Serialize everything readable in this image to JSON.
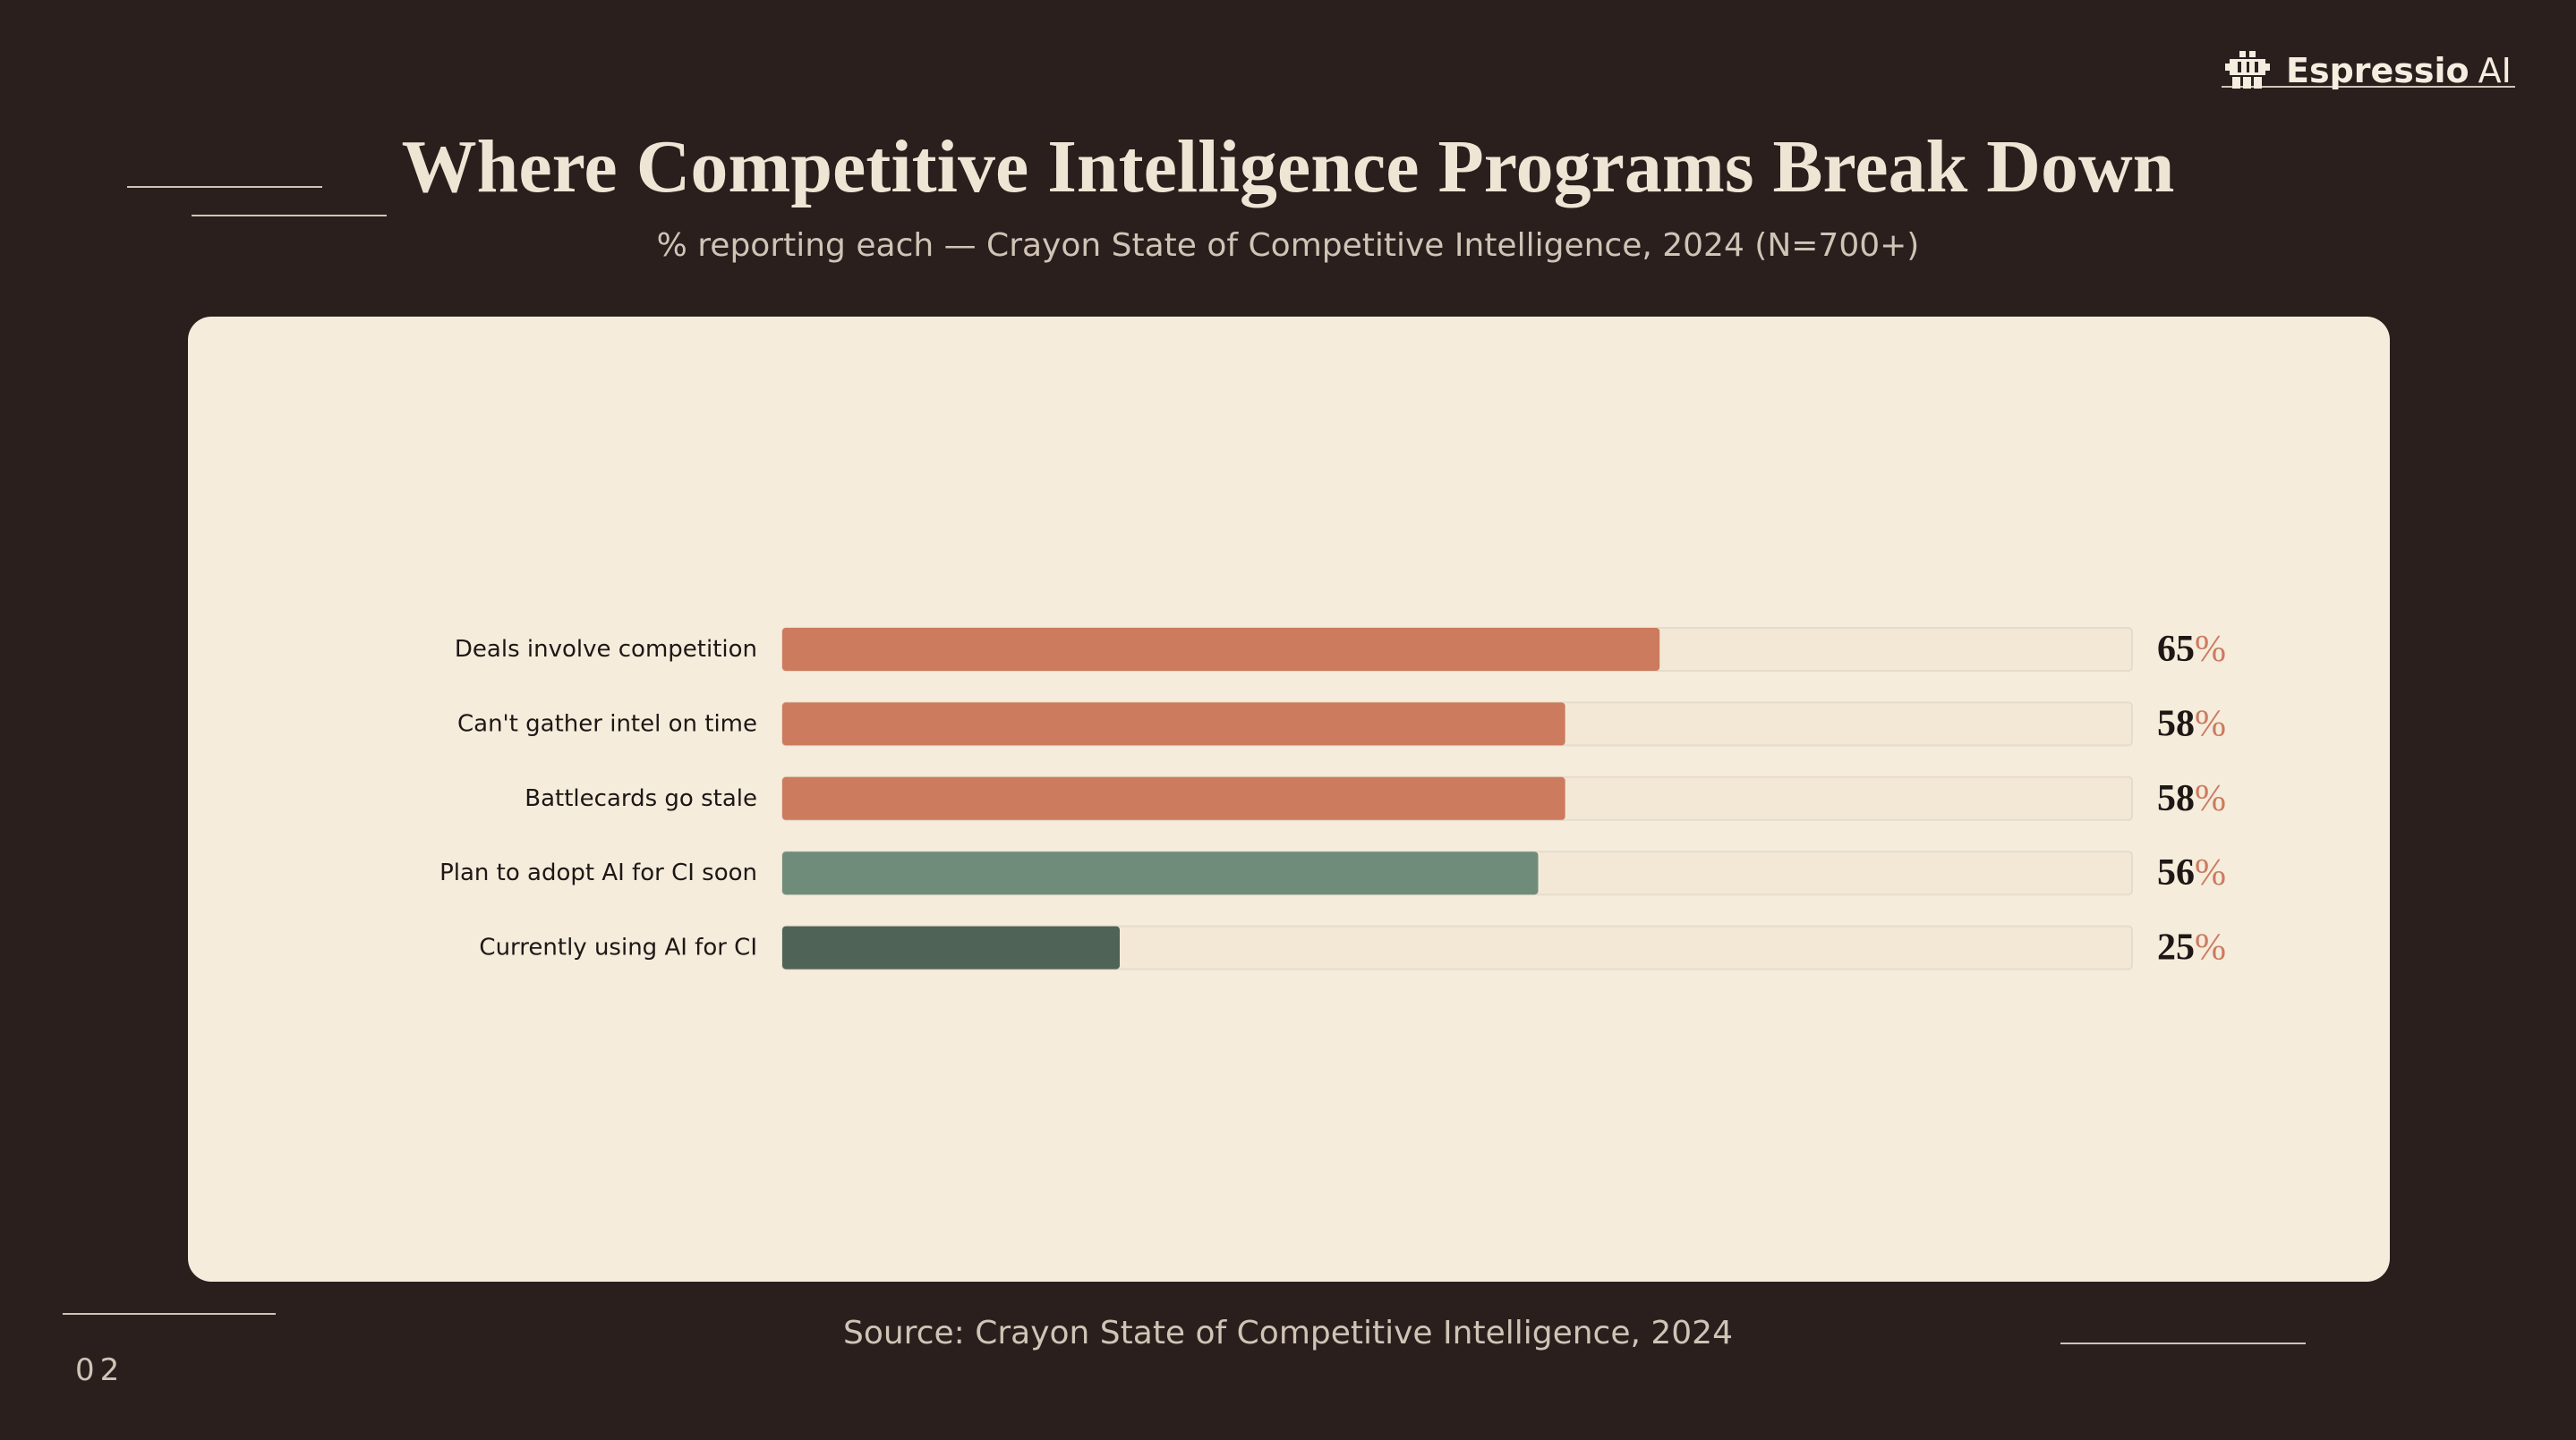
{
  "brand": {
    "name_bold": "Espressio",
    "name_light": "AI",
    "icon": "grid-logo-icon"
  },
  "slide": {
    "title": "Where Competitive Intelligence Programs Break Down",
    "subtitle": "% reporting each — Crayon State of Competitive Intelligence, 2024 (N=700+)",
    "source": "Source: Crayon State of Competitive Intelligence, 2024",
    "page_number": "02"
  },
  "colors": {
    "background": "#2a1f1d",
    "card": "#f5ecdc",
    "terracotta": "#cc7b5f",
    "sage": "#6f8c7a",
    "dark_green": "#4f6357",
    "value_text": "#1e1715",
    "percent_sign": "#cc7b5f"
  },
  "chart_data": {
    "type": "bar",
    "orientation": "horizontal",
    "categories": [
      "Deals involve competition",
      "Can't gather intel on time",
      "Battlecards go stale",
      "Plan to adopt AI for CI soon",
      "Currently using AI for CI"
    ],
    "values": [
      65,
      58,
      58,
      56,
      25
    ],
    "value_labels": [
      "65",
      "58",
      "58",
      "56",
      "25"
    ],
    "value_suffix": "%",
    "bar_colors": [
      "#cc7b5f",
      "#cc7b5f",
      "#cc7b5f",
      "#6f8c7a",
      "#4f6357"
    ],
    "xlim": [
      0,
      100
    ],
    "grid": false,
    "legend": "none"
  }
}
